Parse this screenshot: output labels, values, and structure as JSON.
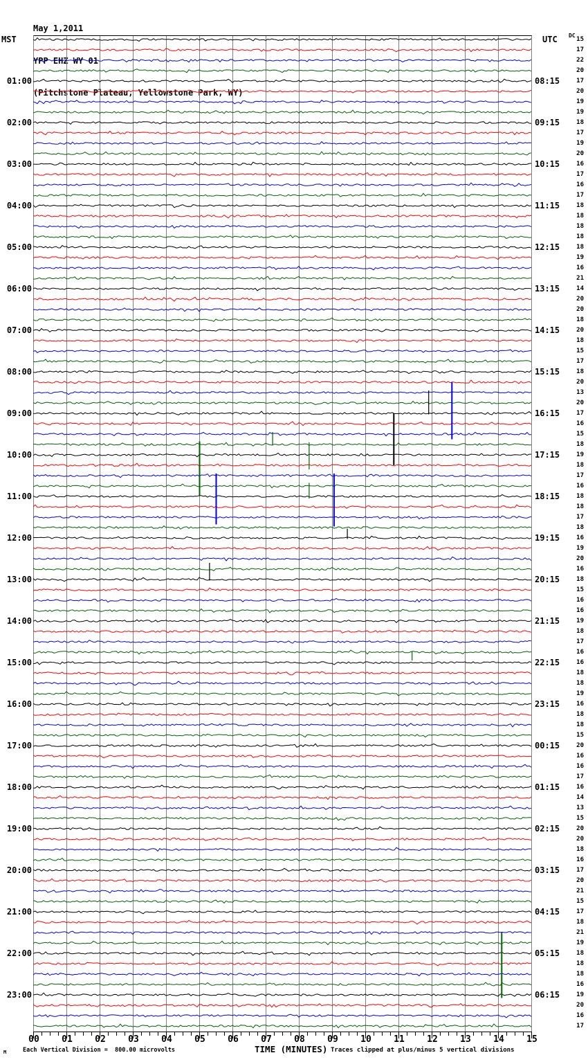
{
  "header": {
    "date": "May 1,2011",
    "station": "YPP EHZ WY 01",
    "location": "(Pitchstone Plateau, Yellowstone Park, WY)",
    "left_tz": "MST",
    "right_tz": "UTC",
    "dc_label": "DC"
  },
  "footer": {
    "watermark": "M",
    "scale_note": "Each Vertical Division =  800.00 microvolts",
    "xaxis_title": "TIME (MINUTES)",
    "clip_note": "Traces clipped at plus/minus 5 vertical divisions"
  },
  "x_axis": {
    "labels": [
      "00",
      "01",
      "02",
      "03",
      "04",
      "05",
      "06",
      "07",
      "08",
      "09",
      "10",
      "11",
      "12",
      "13",
      "14",
      "15"
    ]
  },
  "chart_data": {
    "type": "line",
    "title": "Helicorder webicorder record: YPP EHZ WY 01 (Pitchstone Plateau, Yellowstone Park, WY), May 1,2011",
    "xlabel": "TIME (MINUTES)",
    "x_range": [
      0,
      15
    ],
    "minutes_per_row": 15,
    "rows_total": 96,
    "grid": true,
    "division_microvolts": 800.0,
    "clip_divisions": 5,
    "row_colors_cycle": [
      "#000000",
      "#ff0000",
      "#0000ee",
      "#006400"
    ],
    "grid_color": "#7f7f7f",
    "hour_rows": [
      {
        "row": 4,
        "mst": "01:00",
        "utc": "08:15"
      },
      {
        "row": 8,
        "mst": "02:00",
        "utc": "09:15"
      },
      {
        "row": 12,
        "mst": "03:00",
        "utc": "10:15"
      },
      {
        "row": 16,
        "mst": "04:00",
        "utc": "11:15"
      },
      {
        "row": 20,
        "mst": "05:00",
        "utc": "12:15"
      },
      {
        "row": 24,
        "mst": "06:00",
        "utc": "13:15"
      },
      {
        "row": 28,
        "mst": "07:00",
        "utc": "14:15"
      },
      {
        "row": 32,
        "mst": "08:00",
        "utc": "15:15"
      },
      {
        "row": 36,
        "mst": "09:00",
        "utc": "16:15"
      },
      {
        "row": 40,
        "mst": "10:00",
        "utc": "17:15"
      },
      {
        "row": 44,
        "mst": "11:00",
        "utc": "18:15"
      },
      {
        "row": 48,
        "mst": "12:00",
        "utc": "19:15"
      },
      {
        "row": 52,
        "mst": "13:00",
        "utc": "20:15"
      },
      {
        "row": 56,
        "mst": "14:00",
        "utc": "21:15"
      },
      {
        "row": 60,
        "mst": "15:00",
        "utc": "22:15"
      },
      {
        "row": 64,
        "mst": "16:00",
        "utc": "23:15"
      },
      {
        "row": 68,
        "mst": "17:00",
        "utc": "00:15"
      },
      {
        "row": 72,
        "mst": "18:00",
        "utc": "01:15"
      },
      {
        "row": 76,
        "mst": "19:00",
        "utc": "02:15"
      },
      {
        "row": 80,
        "mst": "20:00",
        "utc": "03:15"
      },
      {
        "row": 84,
        "mst": "21:00",
        "utc": "04:15"
      },
      {
        "row": 88,
        "mst": "22:00",
        "utc": "05:15"
      },
      {
        "row": 92,
        "mst": "23:00",
        "utc": "06:15"
      }
    ],
    "dc_values": [
      15,
      17,
      22,
      20,
      17,
      20,
      19,
      19,
      18,
      17,
      19,
      20,
      16,
      17,
      16,
      17,
      18,
      18,
      18,
      18,
      18,
      19,
      16,
      21,
      14,
      20,
      20,
      18,
      20,
      18,
      15,
      17,
      18,
      20,
      13,
      20,
      17,
      16,
      15,
      18,
      19,
      18,
      17,
      16,
      18,
      18,
      17,
      18,
      16,
      19,
      20,
      16,
      18,
      15,
      16,
      16,
      19,
      18,
      17,
      16,
      16,
      18,
      18,
      19,
      16,
      18,
      18,
      15,
      20,
      16,
      16,
      17,
      16,
      14,
      13,
      15,
      20,
      20,
      18,
      16,
      17,
      20,
      21,
      15,
      17,
      18,
      21,
      19,
      18,
      18,
      18,
      16,
      19,
      20,
      16,
      17
    ],
    "spikes": [
      {
        "row": 36,
        "minute": 10.85,
        "up_div": 0.0,
        "down_div": 5.0
      },
      {
        "row": 36,
        "minute": 11.9,
        "up_div": 2.2,
        "down_div": 0.1
      },
      {
        "row": 38,
        "minute": 12.6,
        "up_div": 5.0,
        "down_div": 0.5
      },
      {
        "row": 39,
        "minute": 5.0,
        "up_div": 0.3,
        "down_div": 4.9
      },
      {
        "row": 39,
        "minute": 7.2,
        "up_div": 1.2,
        "down_div": 0.1
      },
      {
        "row": 39,
        "minute": 8.3,
        "up_div": 0.2,
        "down_div": 2.4
      },
      {
        "row": 42,
        "minute": 5.5,
        "up_div": 0.2,
        "down_div": 4.7
      },
      {
        "row": 42,
        "minute": 9.05,
        "up_div": 0.2,
        "down_div": 4.9
      },
      {
        "row": 43,
        "minute": 8.3,
        "up_div": 0.3,
        "down_div": 1.2
      },
      {
        "row": 48,
        "minute": 9.45,
        "up_div": 0.9,
        "down_div": 0.1
      },
      {
        "row": 52,
        "minute": 5.3,
        "up_div": 1.6,
        "down_div": 0.1
      },
      {
        "row": 59,
        "minute": 11.4,
        "up_div": 0.1,
        "down_div": 0.8
      },
      {
        "row": 91,
        "minute": 14.1,
        "up_div": 5.0,
        "down_div": 1.3
      }
    ]
  }
}
